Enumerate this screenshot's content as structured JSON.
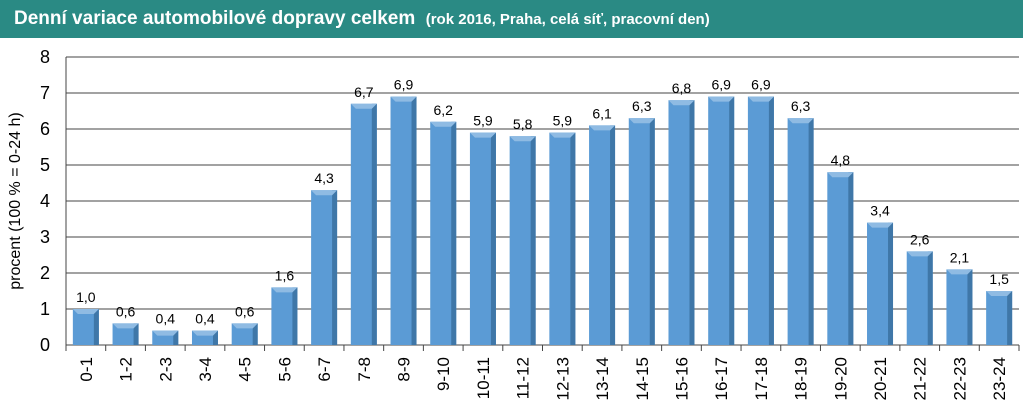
{
  "header": {
    "title": "Denní variace automobilové dopravy celkem",
    "subtitle": "(rok 2016, Praha, celá síť, pracovní den)"
  },
  "colors": {
    "title_bg": "#2a8a84",
    "bar_front": "#5b9bd5",
    "bar_side": "#3f77a8",
    "bar_top": "#8fbbe3",
    "grid": "#444444"
  },
  "chart_data": {
    "type": "bar",
    "title": "Denní variace automobilové dopravy celkem",
    "subtitle": "(rok 2016, Praha, celá síť, pracovní den)",
    "xlabel": "",
    "ylabel": "procent  (100 % = 0-24 h)",
    "ylim": [
      0,
      8
    ],
    "yticks": [
      0,
      1,
      2,
      3,
      4,
      5,
      6,
      7,
      8
    ],
    "grid": true,
    "categories": [
      "0-1",
      "1-2",
      "2-3",
      "3-4",
      "4-5",
      "5-6",
      "6-7",
      "7-8",
      "8-9",
      "9-10",
      "10-11",
      "11-12",
      "12-13",
      "13-14",
      "14-15",
      "15-16",
      "16-17",
      "17-18",
      "18-19",
      "19-20",
      "20-21",
      "21-22",
      "22-23",
      "23-24"
    ],
    "values": [
      1.0,
      0.6,
      0.4,
      0.4,
      0.6,
      1.6,
      4.3,
      6.7,
      6.9,
      6.2,
      5.9,
      5.8,
      5.9,
      6.1,
      6.3,
      6.8,
      6.9,
      6.9,
      6.3,
      4.8,
      3.4,
      2.6,
      2.1,
      1.5
    ],
    "data_labels": [
      "1,0",
      "0,6",
      "0,4",
      "0,4",
      "0,6",
      "1,6",
      "4,3",
      "6,7",
      "6,9",
      "6,2",
      "5,9",
      "5,8",
      "5,9",
      "6,1",
      "6,3",
      "6,8",
      "6,9",
      "6,9",
      "6,3",
      "4,8",
      "3,4",
      "2,6",
      "2,1",
      "1,5"
    ]
  }
}
